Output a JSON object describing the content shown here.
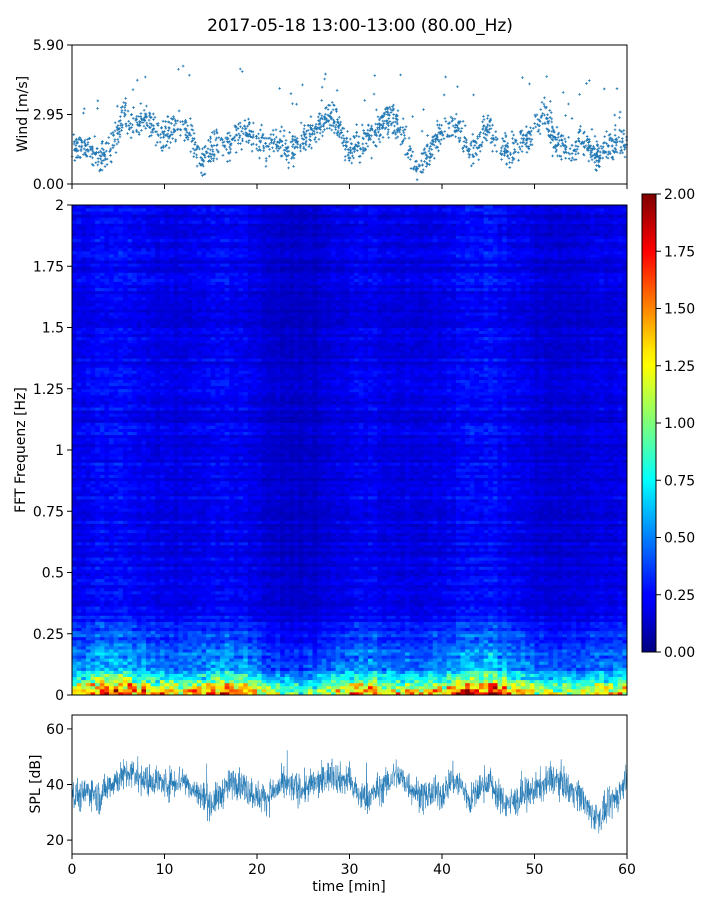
{
  "title": "2017-05-18 13:00-13:00 (80.00_Hz)",
  "colors": {
    "series": "#1f77b4",
    "axis": "#000000"
  },
  "chart_data": [
    {
      "type": "scatter",
      "name": "wind-panel",
      "ylabel": "Wind [m/s]",
      "xlim": [
        0,
        60
      ],
      "ylim": [
        0,
        5.9
      ],
      "yticks": [
        "0.00",
        "2.95",
        "5.90"
      ],
      "ytick_values": [
        0,
        2.95,
        5.9
      ],
      "x_tick_labels_shown": false,
      "envelope": {
        "x": [
          0,
          1,
          2,
          3,
          4,
          5,
          5.5,
          6,
          7,
          8,
          9,
          10,
          11,
          12,
          13,
          14,
          15,
          16,
          17,
          18,
          19,
          20,
          21,
          22,
          23,
          24,
          25,
          26,
          27,
          28,
          29,
          30,
          31,
          32,
          33,
          34,
          35,
          36,
          37,
          38,
          39,
          40,
          41,
          42,
          43,
          44,
          45,
          46,
          47,
          48,
          49,
          50,
          51,
          52,
          53,
          54,
          55,
          56,
          57,
          58,
          59,
          60
        ],
        "y": [
          1.5,
          1.6,
          1.3,
          1.1,
          1.4,
          2.2,
          3.0,
          2.6,
          2.4,
          2.8,
          2.3,
          2.1,
          2.4,
          2.5,
          2.0,
          0.9,
          1.5,
          1.8,
          1.6,
          2.1,
          2.2,
          1.8,
          1.6,
          1.9,
          1.5,
          1.6,
          1.9,
          2.2,
          2.6,
          3.0,
          2.3,
          1.3,
          1.6,
          1.9,
          2.3,
          2.8,
          2.6,
          1.9,
          0.7,
          0.9,
          1.5,
          2.3,
          2.5,
          2.2,
          1.4,
          1.8,
          2.4,
          1.7,
          1.5,
          1.6,
          1.8,
          2.3,
          3.1,
          2.0,
          1.6,
          1.4,
          1.9,
          1.5,
          1.2,
          1.6,
          1.8,
          1.7
        ]
      },
      "spread": 0.55,
      "n_points": 1800
    },
    {
      "type": "heatmap",
      "name": "spectrogram-panel",
      "ylabel": "FFT Frequenz [Hz]",
      "xlim": [
        0,
        60
      ],
      "ylim": [
        0,
        2
      ],
      "yticks": [
        "0",
        "0.25",
        "0.5",
        "0.75",
        "1",
        "1.25",
        "1.5",
        "1.75",
        "2"
      ],
      "ytick_values": [
        0,
        0.25,
        0.5,
        0.75,
        1,
        1.25,
        1.5,
        1.75,
        2
      ],
      "colormap": "jet",
      "colorbar": {
        "range": [
          0,
          2
        ],
        "ticks": [
          "0.00",
          "0.25",
          "0.50",
          "0.75",
          "1.00",
          "1.25",
          "1.50",
          "1.75",
          "2.00"
        ],
        "tick_values": [
          0,
          0.25,
          0.5,
          0.75,
          1,
          1.25,
          1.5,
          1.75,
          2
        ]
      },
      "rows": 160,
      "cols": 120,
      "low_freq_band_hz": 0.1,
      "background_level": 0.22
    },
    {
      "type": "line",
      "name": "spl-panel",
      "ylabel": "SPL [dB]",
      "xlabel": "time [min]",
      "xlim": [
        0,
        60
      ],
      "ylim": [
        15,
        65
      ],
      "xticks": [
        "0",
        "10",
        "20",
        "30",
        "40",
        "50",
        "60"
      ],
      "xtick_values": [
        0,
        10,
        20,
        30,
        40,
        50,
        60
      ],
      "yticks": [
        "20",
        "40",
        "60"
      ],
      "ytick_values": [
        20,
        40,
        60
      ],
      "envelope": {
        "x": [
          0,
          1,
          2,
          3,
          4,
          5,
          6,
          7,
          8,
          9,
          10,
          11,
          12,
          13,
          14,
          15,
          16,
          17,
          18,
          19,
          20,
          21,
          22,
          23,
          24,
          25,
          26,
          27,
          28,
          29,
          30,
          31,
          32,
          33,
          34,
          35,
          36,
          37,
          38,
          39,
          40,
          41,
          42,
          43,
          44,
          45,
          46,
          47,
          48,
          49,
          50,
          51,
          52,
          53,
          54,
          55,
          56,
          57,
          58,
          59,
          60
        ],
        "y": [
          37,
          36,
          38,
          35,
          40,
          42,
          44,
          43,
          41,
          42,
          40,
          41,
          42,
          38,
          36,
          33,
          36,
          40,
          41,
          38,
          36,
          35,
          38,
          40,
          39,
          38,
          40,
          41,
          44,
          42,
          41,
          36,
          35,
          38,
          40,
          44,
          41,
          38,
          35,
          37,
          36,
          42,
          40,
          34,
          38,
          42,
          36,
          33,
          34,
          36,
          38,
          40,
          42,
          41,
          38,
          36,
          30,
          28,
          32,
          36,
          42
        ]
      },
      "noise_db": 4
    }
  ]
}
